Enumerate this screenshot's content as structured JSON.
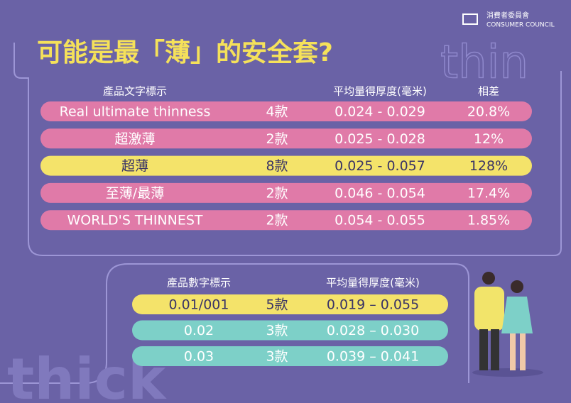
{
  "header": {
    "title": "可能是最「薄」的安全套?",
    "logo_zh": "消費者委員會",
    "logo_en": "CONSUMER COUNCIL"
  },
  "decor": {
    "top_word": "thin",
    "bottom_word": "thick"
  },
  "table_1": {
    "headers": [
      "產品文字標示",
      "平均量得厚度(毫米)",
      "相差"
    ],
    "rows": [
      [
        "Real ultimate thinness",
        "4款",
        "0.024 - 0.029",
        "20.8%"
      ],
      [
        "超激薄",
        "2款",
        "0.025 - 0.028",
        "12%"
      ],
      [
        "超薄",
        "8款",
        "0.025 - 0.057",
        "128%"
      ],
      [
        "至薄/最薄",
        "2款",
        "0.046 - 0.054",
        "17.4%"
      ],
      [
        "WORLD'S THINNEST",
        "2款",
        "0.054 - 0.055",
        "1.85%"
      ]
    ]
  },
  "table_2": {
    "headers": [
      "產品數字標示",
      "平均量得厚度(毫米)"
    ],
    "rows": [
      [
        "0.01/001",
        "5款",
        "0.019 – 0.055"
      ],
      [
        "0.02",
        "3款",
        "0.028 – 0.030"
      ],
      [
        "0.03",
        "3款",
        "0.039 – 0.041"
      ]
    ]
  }
}
